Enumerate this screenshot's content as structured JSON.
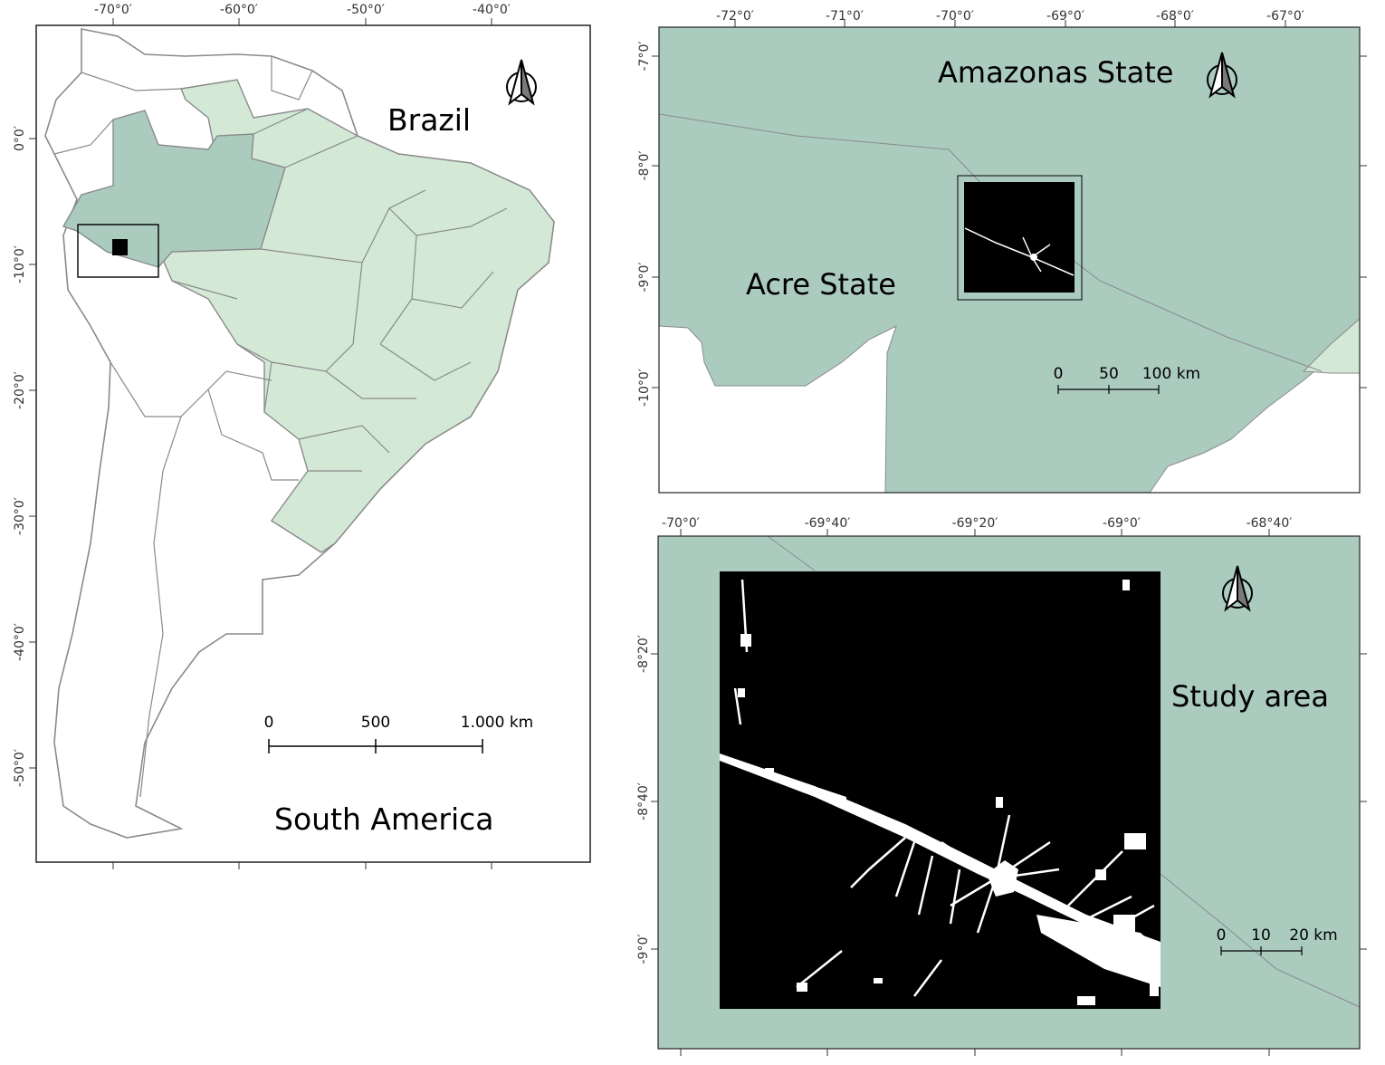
{
  "panel_left": {
    "title": "Brazil",
    "subtitle": "South America",
    "x_ticks": [
      "-70°0′",
      "-60°0′",
      "-50°0′",
      "-40°0′"
    ],
    "y_ticks": [
      "0°0′",
      "-10°0′",
      "-20°0′",
      "-30°0′",
      "-40°0′",
      "-50°0′"
    ],
    "scale": {
      "labels": [
        "0",
        "500",
        "1.000 km"
      ]
    }
  },
  "panel_top_right": {
    "label_amazonas": "Amazonas State",
    "label_acre": "Acre State",
    "x_ticks": [
      "-72°0′",
      "-71°0′",
      "-70°0′",
      "-69°0′",
      "-68°0′",
      "-67°0′"
    ],
    "y_ticks": [
      "-7°0′",
      "-8°0′",
      "-9°0′",
      "-10°0′"
    ],
    "scale": {
      "labels": [
        "0",
        "50",
        "100 km"
      ]
    }
  },
  "panel_bottom_right": {
    "label_study": "Study area",
    "x_ticks": [
      "-70°0′",
      "-69°40′",
      "-69°20′",
      "-69°0′",
      "-68°40′"
    ],
    "y_ticks": [
      "-8°20′",
      "-8°40′",
      "-9°0′"
    ],
    "scale": {
      "labels": [
        "0",
        "10",
        "20 km"
      ]
    }
  },
  "colors": {
    "amazonas_fill": "#abcbbf",
    "brazil_fill": "#d3e9d6",
    "study_raster_bg": "#000000",
    "urban_fill": "#ffffff",
    "border": "#888888"
  },
  "icons": [
    "north-arrow-icon"
  ]
}
